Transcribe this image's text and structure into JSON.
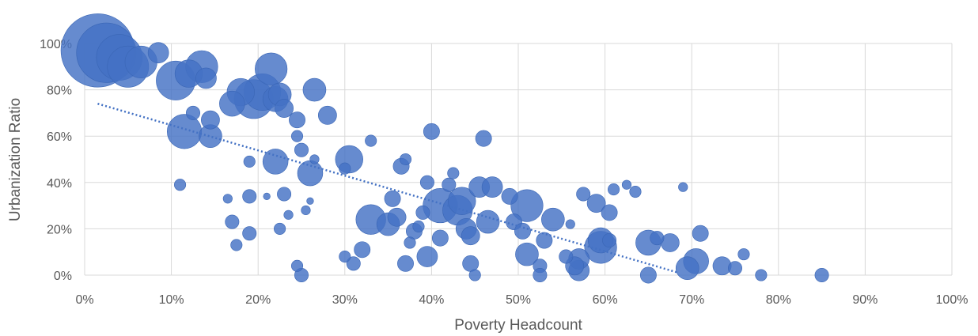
{
  "chart_data": {
    "type": "scatter",
    "subtype": "bubble",
    "title": "",
    "xlabel": "Poverty Headcount",
    "ylabel": "Urbanization Ratio",
    "xlim": [
      0,
      100
    ],
    "ylim": [
      0,
      100
    ],
    "x_ticks": [
      "0%",
      "10%",
      "20%",
      "30%",
      "40%",
      "50%",
      "60%",
      "70%",
      "80%",
      "90%",
      "100%"
    ],
    "y_ticks": [
      "0%",
      "20%",
      "40%",
      "60%",
      "80%",
      "100%"
    ],
    "grid": true,
    "legend": "none",
    "bubble_color": "#4472c4",
    "trendline": {
      "type": "linear",
      "style": "dotted",
      "color": "#4472c4",
      "x": [
        1.5,
        68.5
      ],
      "y": [
        74,
        1
      ]
    },
    "points": [
      {
        "x": 1.5,
        "y": 97,
        "size": 32
      },
      {
        "x": 2.5,
        "y": 96,
        "size": 26
      },
      {
        "x": 4,
        "y": 94,
        "size": 20
      },
      {
        "x": 5,
        "y": 90,
        "size": 18
      },
      {
        "x": 6.5,
        "y": 92,
        "size": 14
      },
      {
        "x": 8.5,
        "y": 96,
        "size": 9
      },
      {
        "x": 10.5,
        "y": 84,
        "size": 17
      },
      {
        "x": 12,
        "y": 87,
        "size": 12
      },
      {
        "x": 13.5,
        "y": 90,
        "size": 14
      },
      {
        "x": 14,
        "y": 85,
        "size": 9
      },
      {
        "x": 11.5,
        "y": 62,
        "size": 15
      },
      {
        "x": 12.5,
        "y": 70,
        "size": 6
      },
      {
        "x": 14.5,
        "y": 67,
        "size": 8
      },
      {
        "x": 14.5,
        "y": 60,
        "size": 10
      },
      {
        "x": 11,
        "y": 39,
        "size": 5
      },
      {
        "x": 17,
        "y": 74,
        "size": 11
      },
      {
        "x": 18,
        "y": 79,
        "size": 12
      },
      {
        "x": 19.5,
        "y": 76,
        "size": 17
      },
      {
        "x": 20.5,
        "y": 79,
        "size": 16
      },
      {
        "x": 21.5,
        "y": 89,
        "size": 14
      },
      {
        "x": 22,
        "y": 76,
        "size": 11
      },
      {
        "x": 22.5,
        "y": 78,
        "size": 10
      },
      {
        "x": 23,
        "y": 72,
        "size": 8
      },
      {
        "x": 24.5,
        "y": 67,
        "size": 7
      },
      {
        "x": 26.5,
        "y": 80,
        "size": 10
      },
      {
        "x": 28,
        "y": 69,
        "size": 8
      },
      {
        "x": 22,
        "y": 49,
        "size": 11
      },
      {
        "x": 24.5,
        "y": 60,
        "size": 5
      },
      {
        "x": 25,
        "y": 54,
        "size": 6
      },
      {
        "x": 26,
        "y": 44,
        "size": 11
      },
      {
        "x": 26.5,
        "y": 50,
        "size": 4
      },
      {
        "x": 19,
        "y": 49,
        "size": 5
      },
      {
        "x": 16.5,
        "y": 33,
        "size": 4
      },
      {
        "x": 17,
        "y": 23,
        "size": 6
      },
      {
        "x": 17.5,
        "y": 13,
        "size": 5
      },
      {
        "x": 19,
        "y": 34,
        "size": 6
      },
      {
        "x": 19,
        "y": 18,
        "size": 6
      },
      {
        "x": 21,
        "y": 34,
        "size": 3
      },
      {
        "x": 23,
        "y": 35,
        "size": 6
      },
      {
        "x": 22.5,
        "y": 20,
        "size": 5
      },
      {
        "x": 23.5,
        "y": 26,
        "size": 4
      },
      {
        "x": 25.5,
        "y": 28,
        "size": 4
      },
      {
        "x": 26,
        "y": 32,
        "size": 3
      },
      {
        "x": 24.5,
        "y": 4,
        "size": 5
      },
      {
        "x": 25,
        "y": 0,
        "size": 6
      },
      {
        "x": 30.5,
        "y": 50,
        "size": 12
      },
      {
        "x": 30,
        "y": 46,
        "size": 5
      },
      {
        "x": 33,
        "y": 58,
        "size": 5
      },
      {
        "x": 30,
        "y": 8,
        "size": 5
      },
      {
        "x": 31,
        "y": 5,
        "size": 6
      },
      {
        "x": 32,
        "y": 11,
        "size": 7
      },
      {
        "x": 33,
        "y": 24,
        "size": 13
      },
      {
        "x": 35,
        "y": 22,
        "size": 10
      },
      {
        "x": 35.5,
        "y": 33,
        "size": 7
      },
      {
        "x": 36,
        "y": 25,
        "size": 8
      },
      {
        "x": 36.5,
        "y": 47,
        "size": 7
      },
      {
        "x": 37,
        "y": 50,
        "size": 5
      },
      {
        "x": 37.5,
        "y": 14,
        "size": 5
      },
      {
        "x": 38,
        "y": 19,
        "size": 7
      },
      {
        "x": 38.5,
        "y": 21,
        "size": 5
      },
      {
        "x": 39,
        "y": 27,
        "size": 6
      },
      {
        "x": 39.5,
        "y": 8,
        "size": 9
      },
      {
        "x": 37,
        "y": 5,
        "size": 7
      },
      {
        "x": 40,
        "y": 62,
        "size": 7
      },
      {
        "x": 39.5,
        "y": 40,
        "size": 6
      },
      {
        "x": 41,
        "y": 30,
        "size": 15
      },
      {
        "x": 41,
        "y": 16,
        "size": 7
      },
      {
        "x": 42,
        "y": 39,
        "size": 6
      },
      {
        "x": 42.5,
        "y": 44,
        "size": 5
      },
      {
        "x": 43,
        "y": 28,
        "size": 13
      },
      {
        "x": 43.5,
        "y": 32,
        "size": 12
      },
      {
        "x": 44,
        "y": 20,
        "size": 9
      },
      {
        "x": 44.5,
        "y": 17,
        "size": 8
      },
      {
        "x": 44.5,
        "y": 5,
        "size": 7
      },
      {
        "x": 45,
        "y": 0,
        "size": 5
      },
      {
        "x": 45.5,
        "y": 38,
        "size": 9
      },
      {
        "x": 46,
        "y": 59,
        "size": 7
      },
      {
        "x": 46.5,
        "y": 23,
        "size": 10
      },
      {
        "x": 47,
        "y": 38,
        "size": 9
      },
      {
        "x": 49,
        "y": 34,
        "size": 7
      },
      {
        "x": 49.5,
        "y": 23,
        "size": 7
      },
      {
        "x": 50.5,
        "y": 19,
        "size": 7
      },
      {
        "x": 51,
        "y": 30,
        "size": 14
      },
      {
        "x": 51,
        "y": 9,
        "size": 10
      },
      {
        "x": 53,
        "y": 15,
        "size": 7
      },
      {
        "x": 52.5,
        "y": 4,
        "size": 6
      },
      {
        "x": 52.5,
        "y": 0,
        "size": 6
      },
      {
        "x": 54,
        "y": 24,
        "size": 10
      },
      {
        "x": 55.5,
        "y": 8,
        "size": 6
      },
      {
        "x": 56,
        "y": 22,
        "size": 4
      },
      {
        "x": 56.5,
        "y": 4,
        "size": 8
      },
      {
        "x": 57,
        "y": 2,
        "size": 9
      },
      {
        "x": 57,
        "y": 7,
        "size": 9
      },
      {
        "x": 57.5,
        "y": 35,
        "size": 6
      },
      {
        "x": 59,
        "y": 31,
        "size": 8
      },
      {
        "x": 59.5,
        "y": 15,
        "size": 11
      },
      {
        "x": 59.5,
        "y": 12,
        "size": 14
      },
      {
        "x": 60.5,
        "y": 27,
        "size": 7
      },
      {
        "x": 61,
        "y": 37,
        "size": 5
      },
      {
        "x": 60.5,
        "y": 15,
        "size": 6
      },
      {
        "x": 62.5,
        "y": 39,
        "size": 4
      },
      {
        "x": 63.5,
        "y": 36,
        "size": 5
      },
      {
        "x": 65,
        "y": 14,
        "size": 11
      },
      {
        "x": 65,
        "y": 0,
        "size": 7
      },
      {
        "x": 66,
        "y": 16,
        "size": 6
      },
      {
        "x": 67.5,
        "y": 14,
        "size": 8
      },
      {
        "x": 69,
        "y": 38,
        "size": 4
      },
      {
        "x": 69.5,
        "y": 3,
        "size": 10
      },
      {
        "x": 70.5,
        "y": 6,
        "size": 11
      },
      {
        "x": 71,
        "y": 18,
        "size": 7
      },
      {
        "x": 73.5,
        "y": 4,
        "size": 8
      },
      {
        "x": 75,
        "y": 3,
        "size": 6
      },
      {
        "x": 76,
        "y": 9,
        "size": 5
      },
      {
        "x": 78,
        "y": 0,
        "size": 5
      },
      {
        "x": 85,
        "y": 0,
        "size": 6
      }
    ]
  }
}
